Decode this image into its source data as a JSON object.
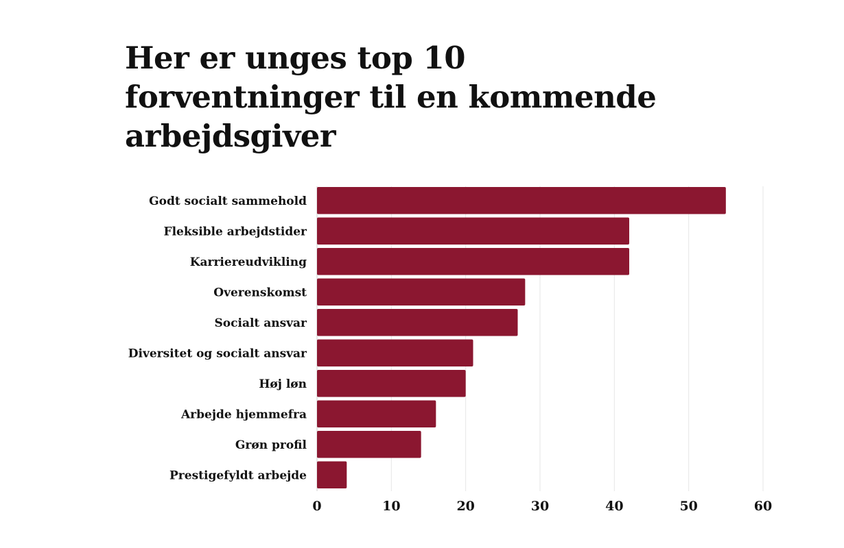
{
  "chart_data": {
    "type": "bar",
    "orientation": "horizontal",
    "title": "Her er unges top 10 forventninger til en kommende arbejdsgiver",
    "categories": [
      "Godt socialt sammehold",
      "Fleksible arbejdstider",
      "Karriereudvikling",
      "Overenskomst",
      "Socialt ansvar",
      "Diversitet og socialt ansvar",
      "Høj løn",
      "Arbejde hjemmefra",
      "Grøn profil",
      "Prestigefyldt arbejde"
    ],
    "values": [
      55,
      42,
      42,
      28,
      27,
      21,
      20,
      16,
      14,
      4
    ],
    "xlim": [
      0,
      60
    ],
    "xticks": [
      "0",
      "10",
      "20",
      "30",
      "40",
      "50",
      "60"
    ],
    "xlabel": "",
    "ylabel": "",
    "grid": "vertical",
    "bar_color": "#8B1730"
  }
}
